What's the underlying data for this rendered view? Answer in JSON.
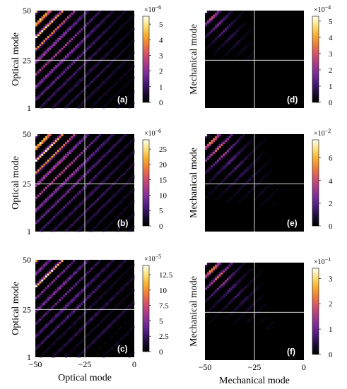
{
  "chart_data": [
    {
      "id": "a",
      "type": "heatmap",
      "panel_label": "(a)",
      "ylabel": "Optical mode",
      "xlabel": "",
      "y_ticks": [
        "1",
        "25",
        "50"
      ],
      "x_ticks": [],
      "colorbar": {
        "multiplier_base": "×10",
        "multiplier_exp": "−6",
        "ticks": [
          "0",
          "1",
          "2",
          "3",
          "4",
          "5"
        ],
        "max": 5.5
      },
      "x_range": [
        -50,
        0
      ],
      "y_range": [
        1,
        50
      ],
      "guide_lines": {
        "x": -25,
        "y": 25
      }
    },
    {
      "id": "b",
      "type": "heatmap",
      "panel_label": "(b)",
      "ylabel": "Optical mode",
      "xlabel": "",
      "y_ticks": [
        "1",
        "25",
        "50"
      ],
      "x_ticks": [],
      "colorbar": {
        "multiplier_base": "×10",
        "multiplier_exp": "−6",
        "ticks": [
          "0",
          "5",
          "10",
          "15",
          "20",
          "25"
        ],
        "max": 28
      },
      "x_range": [
        -50,
        0
      ],
      "y_range": [
        1,
        50
      ],
      "guide_lines": {
        "x": -25,
        "y": 25
      }
    },
    {
      "id": "c",
      "type": "heatmap",
      "panel_label": "(c)",
      "ylabel": "Optical mode",
      "xlabel": "Optical mode",
      "y_ticks": [
        "1",
        "25",
        "50"
      ],
      "x_ticks": [
        "−50",
        "−25",
        "0"
      ],
      "colorbar": {
        "multiplier_base": "×10",
        "multiplier_exp": "−5",
        "ticks": [
          "0",
          "2.5",
          "5",
          "7.5",
          "10",
          "12.5"
        ],
        "max": 14
      },
      "x_range": [
        -50,
        0
      ],
      "y_range": [
        1,
        50
      ],
      "guide_lines": {
        "x": -25,
        "y": 25
      }
    },
    {
      "id": "d",
      "type": "heatmap",
      "panel_label": "(d)",
      "ylabel": "Mechanical mode",
      "xlabel": "",
      "y_ticks": [],
      "x_ticks": [],
      "colorbar": {
        "multiplier_base": "×10",
        "multiplier_exp": "−4",
        "ticks": [
          "0",
          "1",
          "2",
          "3",
          "4",
          "5"
        ],
        "max": 5.3
      },
      "x_range": [
        -50,
        0
      ],
      "y_range": [
        1,
        50
      ],
      "guide_lines": {
        "x": -25,
        "y": 25
      }
    },
    {
      "id": "e",
      "type": "heatmap",
      "panel_label": "(e)",
      "ylabel": "Mechanical mode",
      "xlabel": "",
      "y_ticks": [],
      "x_ticks": [],
      "colorbar": {
        "multiplier_base": "×10",
        "multiplier_exp": "−2",
        "ticks": [
          "0",
          "2",
          "4",
          "6"
        ],
        "max": 7.6
      },
      "x_range": [
        -50,
        0
      ],
      "y_range": [
        1,
        50
      ],
      "guide_lines": {
        "x": -25,
        "y": 25
      }
    },
    {
      "id": "f",
      "type": "heatmap",
      "panel_label": "(f)",
      "ylabel": "Mechanical mode",
      "xlabel": "Mechanical mode",
      "y_ticks": [],
      "x_ticks": [
        "−50",
        "−25",
        "0"
      ],
      "colorbar": {
        "multiplier_base": "×10",
        "multiplier_exp": "−1",
        "ticks": [
          "0",
          "1",
          "2",
          "3"
        ],
        "max": 3.4
      },
      "x_range": [
        -50,
        0
      ],
      "y_range": [
        1,
        50
      ],
      "guide_lines": {
        "x": -25,
        "y": 25
      }
    }
  ],
  "colormap": [
    "#000000",
    "#1c0c35",
    "#4a1a78",
    "#7a2c96",
    "#a83a88",
    "#d4516a",
    "#ee7a3c",
    "#f7ad2e",
    "#fde07a",
    "#fffff2"
  ]
}
